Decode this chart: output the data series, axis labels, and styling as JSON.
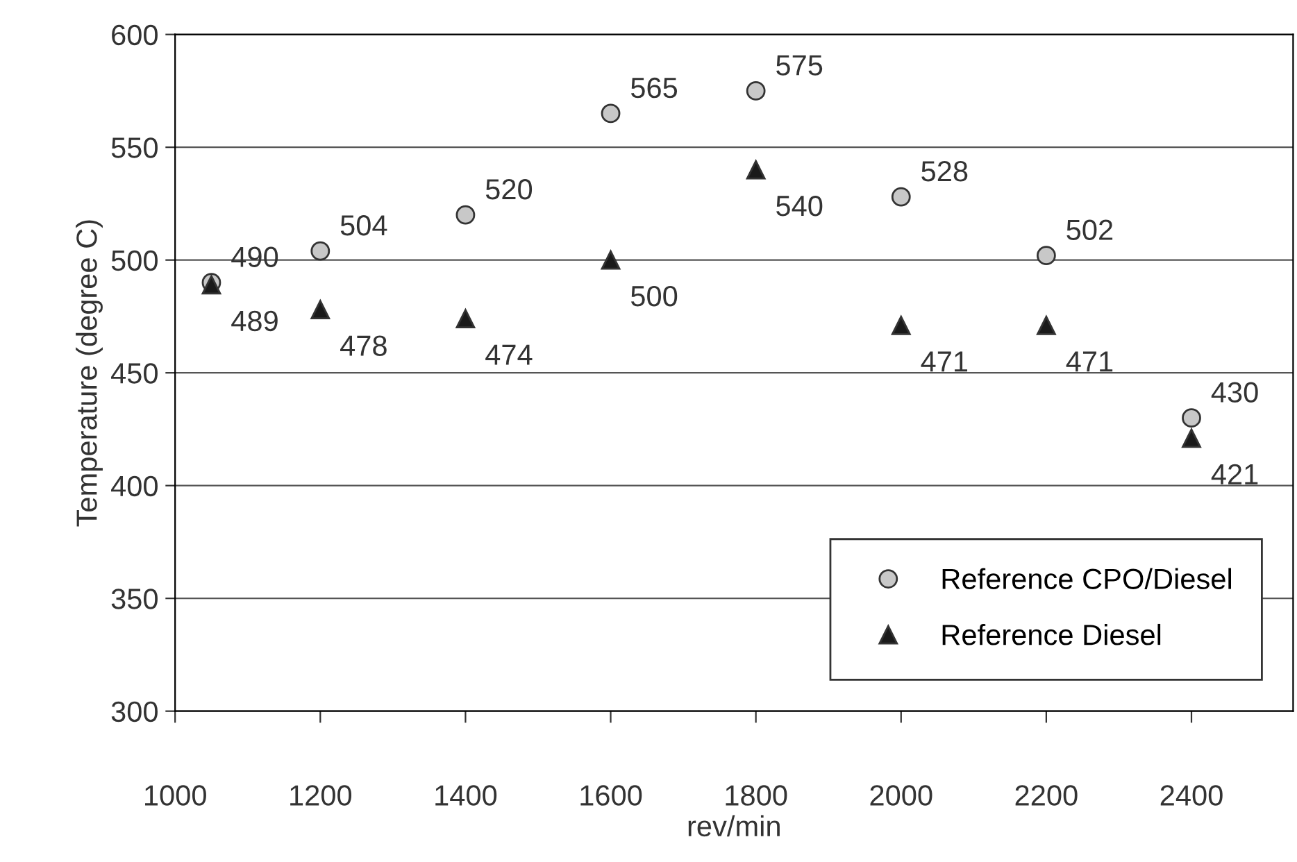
{
  "chart_data": {
    "type": "scatter",
    "xlabel": "rev/min",
    "ylabel": "Temperature (degree C)",
    "x": [
      1050,
      1200,
      1400,
      1600,
      1800,
      2000,
      2200,
      2400
    ],
    "series": [
      {
        "name": "Reference CPO/Diesel",
        "color": "#c8c8c8",
        "marker": "circle",
        "values": [
          490,
          504,
          520,
          565,
          575,
          528,
          502,
          430
        ]
      },
      {
        "name": "Reference Diesel",
        "color": "#1a1a1a",
        "marker": "triangle",
        "values": [
          489,
          478,
          474,
          500,
          540,
          471,
          471,
          421
        ]
      }
    ],
    "xlim": [
      1000,
      2540
    ],
    "xticks": [
      1000,
      1200,
      1400,
      1600,
      1800,
      2000,
      2200,
      2400
    ],
    "ylim": [
      300,
      600
    ],
    "yticks": [
      300,
      350,
      400,
      450,
      500,
      550,
      600
    ],
    "grid": "y",
    "legend": "bottom right",
    "data_labels": true
  }
}
